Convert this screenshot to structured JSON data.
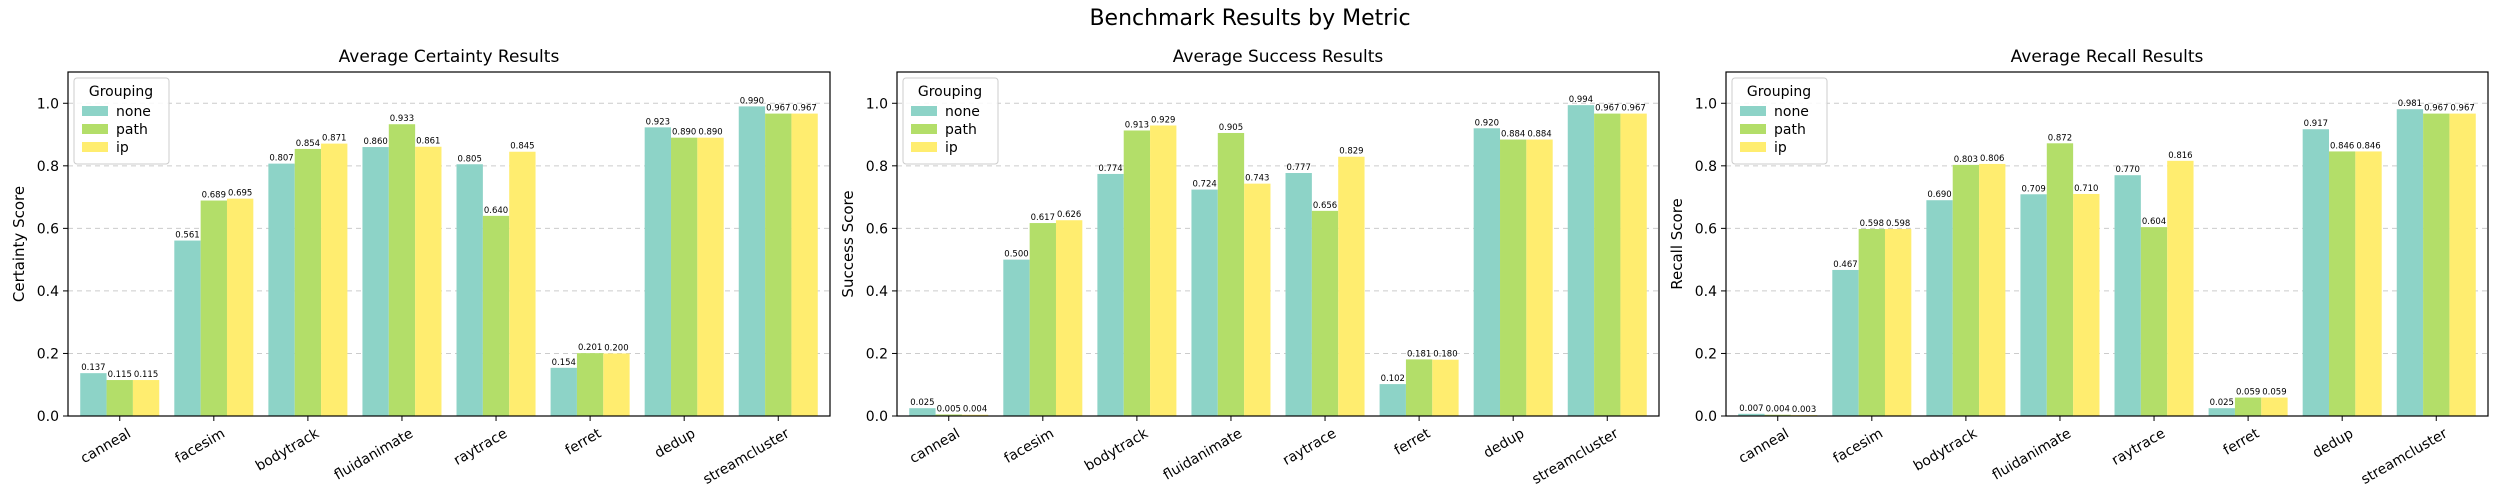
{
  "figure": {
    "title": "Benchmark Results by Metric"
  },
  "legend": {
    "title": "Grouping"
  },
  "colors": {
    "none": "#8dd3c7",
    "path": "#b3de69",
    "ip": "#ffed6f",
    "grid": "#cccccc"
  },
  "chart_data": [
    {
      "type": "bar",
      "title": "Average Certainty Results",
      "xlabel": "",
      "ylabel": "Certainty Score",
      "ylim": [
        0,
        1.1
      ],
      "yticks": [
        "0.0",
        "0.2",
        "0.4",
        "0.6",
        "0.8",
        "1.0"
      ],
      "grid": "y-dashed",
      "legend_position": "top-left",
      "categories": [
        "canneal",
        "facesim",
        "bodytrack",
        "fluidanimate",
        "raytrace",
        "ferret",
        "dedup",
        "streamcluster"
      ],
      "series": [
        {
          "name": "none",
          "values": [
            0.137,
            0.561,
            0.807,
            0.86,
            0.805,
            0.154,
            0.923,
            0.99
          ],
          "labels": [
            "0.137",
            "0.561",
            "0.807",
            "0.860",
            "0.805",
            "0.154",
            "0.923",
            "0.990"
          ]
        },
        {
          "name": "path",
          "values": [
            0.115,
            0.689,
            0.854,
            0.933,
            0.64,
            0.201,
            0.89,
            0.967
          ],
          "labels": [
            "0.115",
            "0.689",
            "0.854",
            "0.933",
            "0.640",
            "0.201",
            "0.890",
            "0.967"
          ]
        },
        {
          "name": "ip",
          "values": [
            0.115,
            0.695,
            0.871,
            0.861,
            0.845,
            0.2,
            0.89,
            0.967
          ],
          "labels": [
            "0.115",
            "0.695",
            "0.871",
            "0.861",
            "0.845",
            "0.200",
            "0.890",
            "0.967"
          ]
        }
      ]
    },
    {
      "type": "bar",
      "title": "Average Success Results",
      "xlabel": "",
      "ylabel": "Success Score",
      "ylim": [
        0,
        1.1
      ],
      "yticks": [
        "0.0",
        "0.2",
        "0.4",
        "0.6",
        "0.8",
        "1.0"
      ],
      "grid": "y-dashed",
      "legend_position": "top-left",
      "categories": [
        "canneal",
        "facesim",
        "bodytrack",
        "fluidanimate",
        "raytrace",
        "ferret",
        "dedup",
        "streamcluster"
      ],
      "series": [
        {
          "name": "none",
          "values": [
            0.025,
            0.5,
            0.774,
            0.724,
            0.777,
            0.102,
            0.92,
            0.994
          ],
          "labels": [
            "0.025",
            "0.500",
            "0.774",
            "0.724",
            "0.777",
            "0.102",
            "0.920",
            "0.994"
          ]
        },
        {
          "name": "path",
          "values": [
            0.005,
            0.617,
            0.913,
            0.905,
            0.656,
            0.181,
            0.884,
            0.967
          ],
          "labels": [
            "0.005",
            "0.617",
            "0.913",
            "0.905",
            "0.656",
            "0.181",
            "0.884",
            "0.967"
          ]
        },
        {
          "name": "ip",
          "values": [
            0.004,
            0.626,
            0.929,
            0.743,
            0.829,
            0.18,
            0.884,
            0.967
          ],
          "labels": [
            "0.004",
            "0.626",
            "0.929",
            "0.743",
            "0.829",
            "0.180",
            "0.884",
            "0.967"
          ]
        }
      ]
    },
    {
      "type": "bar",
      "title": "Average Recall Results",
      "xlabel": "",
      "ylabel": "Recall Score",
      "ylim": [
        0,
        1.1
      ],
      "yticks": [
        "0.0",
        "0.2",
        "0.4",
        "0.6",
        "0.8",
        "1.0"
      ],
      "grid": "y-dashed",
      "legend_position": "top-left",
      "categories": [
        "canneal",
        "facesim",
        "bodytrack",
        "fluidanimate",
        "raytrace",
        "ferret",
        "dedup",
        "streamcluster"
      ],
      "series": [
        {
          "name": "none",
          "values": [
            0.007,
            0.467,
            0.69,
            0.709,
            0.77,
            0.025,
            0.917,
            0.981
          ],
          "labels": [
            "0.007",
            "0.467",
            "0.690",
            "0.709",
            "0.770",
            "0.025",
            "0.917",
            "0.981"
          ]
        },
        {
          "name": "path",
          "values": [
            0.004,
            0.598,
            0.803,
            0.872,
            0.604,
            0.059,
            0.846,
            0.967
          ],
          "labels": [
            "0.004",
            "0.598",
            "0.803",
            "0.872",
            "0.604",
            "0.059",
            "0.846",
            "0.967"
          ]
        },
        {
          "name": "ip",
          "values": [
            0.003,
            0.598,
            0.806,
            0.71,
            0.816,
            0.059,
            0.846,
            0.967
          ],
          "labels": [
            "0.003",
            "0.598",
            "0.806",
            "0.710",
            "0.816",
            "0.059",
            "0.846",
            "0.967"
          ]
        }
      ]
    }
  ]
}
